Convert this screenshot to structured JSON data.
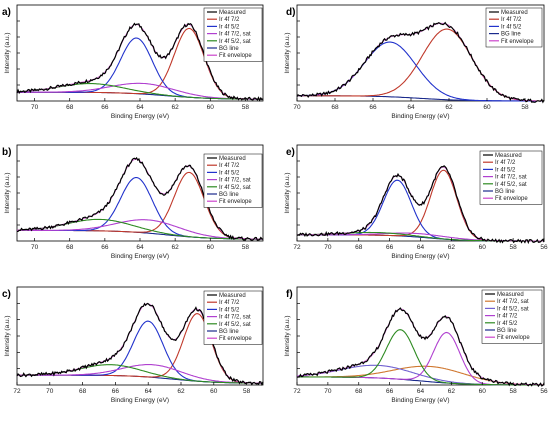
{
  "figure": {
    "xlabel": "Binding Energy (eV)",
    "ylabel": "Intensity (a.u.)"
  },
  "colors": {
    "measured": "#000000",
    "ir72": "#c0392b",
    "ir52": "#2233cc",
    "sat72": "#b040d0",
    "sat52": "#2e8b22",
    "bg": "#1a2a8c",
    "fit": "#cc44cc",
    "ir72_f": "#d07830",
    "ir52_sat_f": "#7060d0"
  },
  "chart_data": [
    {
      "type": "line",
      "panel_label": "a)",
      "xlim": [
        71,
        57
      ],
      "ticks": [
        "70",
        "68",
        "66",
        "64",
        "62",
        "60",
        "58"
      ],
      "tick_values": [
        70,
        68,
        66,
        64,
        62,
        60,
        58
      ],
      "legend": [
        "Measured",
        "Ir 4f 7/2",
        "Ir 4f 5/2",
        "Ir 4f 7/2, sat",
        "Ir 4f 5/2, sat",
        "BG line",
        "Fit envelope"
      ],
      "bg": {
        "high": 0.1,
        "low": 0.02,
        "center": 62.5,
        "width": 1.3
      },
      "peaks": [
        {
          "name": "Ir 4f 7/2",
          "color_key": "ir72",
          "center": 61.2,
          "amp": 0.78,
          "width": 0.85
        },
        {
          "name": "Ir 4f 5/2",
          "color_key": "ir52",
          "center": 64.2,
          "amp": 0.63,
          "width": 0.9
        },
        {
          "name": "Ir 4f 7/2, sat",
          "color_key": "sat72",
          "center": 63.8,
          "amp": 0.12,
          "width": 1.8
        },
        {
          "name": "Ir 4f 5/2, sat",
          "color_key": "sat52",
          "center": 66.8,
          "amp": 0.1,
          "width": 1.8
        }
      ]
    },
    {
      "type": "line",
      "panel_label": "d)",
      "xlim": [
        70,
        57
      ],
      "ticks": [
        "70",
        "68",
        "66",
        "64",
        "62",
        "60",
        "58"
      ],
      "tick_values": [
        70,
        68,
        66,
        64,
        62,
        60,
        58
      ],
      "legend": [
        "Measured",
        "Ir 4f 7/2",
        "Ir 4f 5/2",
        "BG line",
        "Fit envelope"
      ],
      "bg": {
        "high": 0.06,
        "low": 0.0,
        "center": 63.5,
        "width": 1.2
      },
      "peaks": [
        {
          "name": "Ir 4f 7/2",
          "color_key": "ir72",
          "center": 62.1,
          "amp": 0.8,
          "width": 1.3
        },
        {
          "name": "Ir 4f 5/2",
          "color_key": "ir52",
          "center": 65.1,
          "amp": 0.62,
          "width": 1.35
        }
      ]
    },
    {
      "type": "line",
      "panel_label": "b)",
      "xlim": [
        71,
        57
      ],
      "ticks": [
        "70",
        "68",
        "66",
        "64",
        "62",
        "60",
        "58"
      ],
      "tick_values": [
        70,
        68,
        66,
        64,
        62,
        60,
        58
      ],
      "legend": [
        "Measured",
        "Ir 4f 7/2",
        "Ir 4f 5/2",
        "Ir 4f 7/2, sat",
        "Ir 4f 5/2, sat",
        "BG line",
        "Fit envelope"
      ],
      "bg": {
        "high": 0.12,
        "low": 0.02,
        "center": 62.5,
        "width": 1.3
      },
      "peaks": [
        {
          "name": "Ir 4f 7/2",
          "color_key": "ir72",
          "center": 61.2,
          "amp": 0.73,
          "width": 0.85
        },
        {
          "name": "Ir 4f 5/2",
          "color_key": "ir52",
          "center": 64.2,
          "amp": 0.62,
          "width": 0.9
        },
        {
          "name": "Ir 4f 7/2, sat",
          "color_key": "sat72",
          "center": 63.5,
          "amp": 0.15,
          "width": 1.8
        },
        {
          "name": "Ir 4f 5/2, sat",
          "color_key": "sat52",
          "center": 66.3,
          "amp": 0.13,
          "width": 1.8
        }
      ]
    },
    {
      "type": "line",
      "panel_label": "e)",
      "xlim": [
        72,
        56
      ],
      "ticks": [
        "72",
        "70",
        "68",
        "66",
        "64",
        "62",
        "60",
        "58",
        "56"
      ],
      "tick_values": [
        72,
        70,
        68,
        66,
        64,
        62,
        60,
        58,
        56
      ],
      "legend": [
        "Measured",
        "Ir 4f 7/2",
        "Ir 4f 5/2",
        "Ir 4f 7/2, sat",
        "Ir 4f 5/2, sat",
        "BG line",
        "Fit envelope"
      ],
      "bg": {
        "high": 0.07,
        "low": 0.0,
        "center": 63.5,
        "width": 1.2
      },
      "peaks": [
        {
          "name": "Ir 4f 7/2",
          "color_key": "ir72",
          "center": 62.5,
          "amp": 0.78,
          "width": 0.85
        },
        {
          "name": "Ir 4f 5/2",
          "color_key": "ir52",
          "center": 65.5,
          "amp": 0.63,
          "width": 0.9
        },
        {
          "name": "Ir 4f 7/2, sat",
          "color_key": "sat72",
          "center": 64.0,
          "amp": 0.04,
          "width": 2.0
        },
        {
          "name": "Ir 4f 5/2, sat",
          "color_key": "sat52",
          "center": 67.0,
          "amp": 0.03,
          "width": 2.0
        }
      ]
    },
    {
      "type": "line",
      "panel_label": "c)",
      "xlim": [
        72,
        57
      ],
      "ticks": [
        "72",
        "70",
        "68",
        "66",
        "64",
        "62",
        "60",
        "58"
      ],
      "tick_values": [
        72,
        70,
        68,
        66,
        64,
        62,
        60,
        58
      ],
      "legend": [
        "Measured",
        "Ir 4f 7/2",
        "Ir 4f 5/2",
        "Ir 4f 7/2, sat",
        "Ir 4f 5/2, sat",
        "BG line",
        "Fit envelope"
      ],
      "bg": {
        "high": 0.11,
        "low": 0.02,
        "center": 62.5,
        "width": 1.3
      },
      "peaks": [
        {
          "name": "Ir 4f 7/2",
          "color_key": "ir72",
          "center": 61.0,
          "amp": 0.75,
          "width": 0.85
        },
        {
          "name": "Ir 4f 5/2",
          "color_key": "ir52",
          "center": 64.0,
          "amp": 0.62,
          "width": 0.9
        },
        {
          "name": "Ir 4f 7/2, sat",
          "color_key": "sat72",
          "center": 63.7,
          "amp": 0.14,
          "width": 1.8
        },
        {
          "name": "Ir 4f 5/2, sat",
          "color_key": "sat52",
          "center": 66.3,
          "amp": 0.12,
          "width": 1.8
        }
      ]
    },
    {
      "type": "line",
      "panel_label": "f)",
      "xlim": [
        72,
        56
      ],
      "ticks": [
        "72",
        "70",
        "68",
        "66",
        "64",
        "62",
        "60",
        "58",
        "56"
      ],
      "tick_values": [
        72,
        70,
        68,
        66,
        64,
        62,
        60,
        58,
        56
      ],
      "legend": [
        "Measured",
        "Ir 4f 7/2, sat",
        "Ir 4f 5/2, sat",
        "Ir 4f 7/2",
        "Ir 4f 5/2",
        "BG line",
        "Fit envelope"
      ],
      "bg": {
        "high": 0.09,
        "low": 0.0,
        "center": 64.0,
        "width": 1.5
      },
      "peaks": [
        {
          "name": "Ir 4f 7/2, sat",
          "color_key": "ir72_f",
          "center": 63.3,
          "amp": 0.17,
          "width": 2.3
        },
        {
          "name": "Ir 4f 5/2, sat",
          "color_key": "ir52_sat_f",
          "center": 66.8,
          "amp": 0.14,
          "width": 2.3
        },
        {
          "name": "Ir 4f 7/2",
          "color_key": "sat72",
          "center": 62.3,
          "amp": 0.56,
          "width": 0.85
        },
        {
          "name": "Ir 4f 5/2",
          "color_key": "sat52",
          "center": 65.3,
          "amp": 0.55,
          "width": 0.9
        }
      ]
    }
  ]
}
